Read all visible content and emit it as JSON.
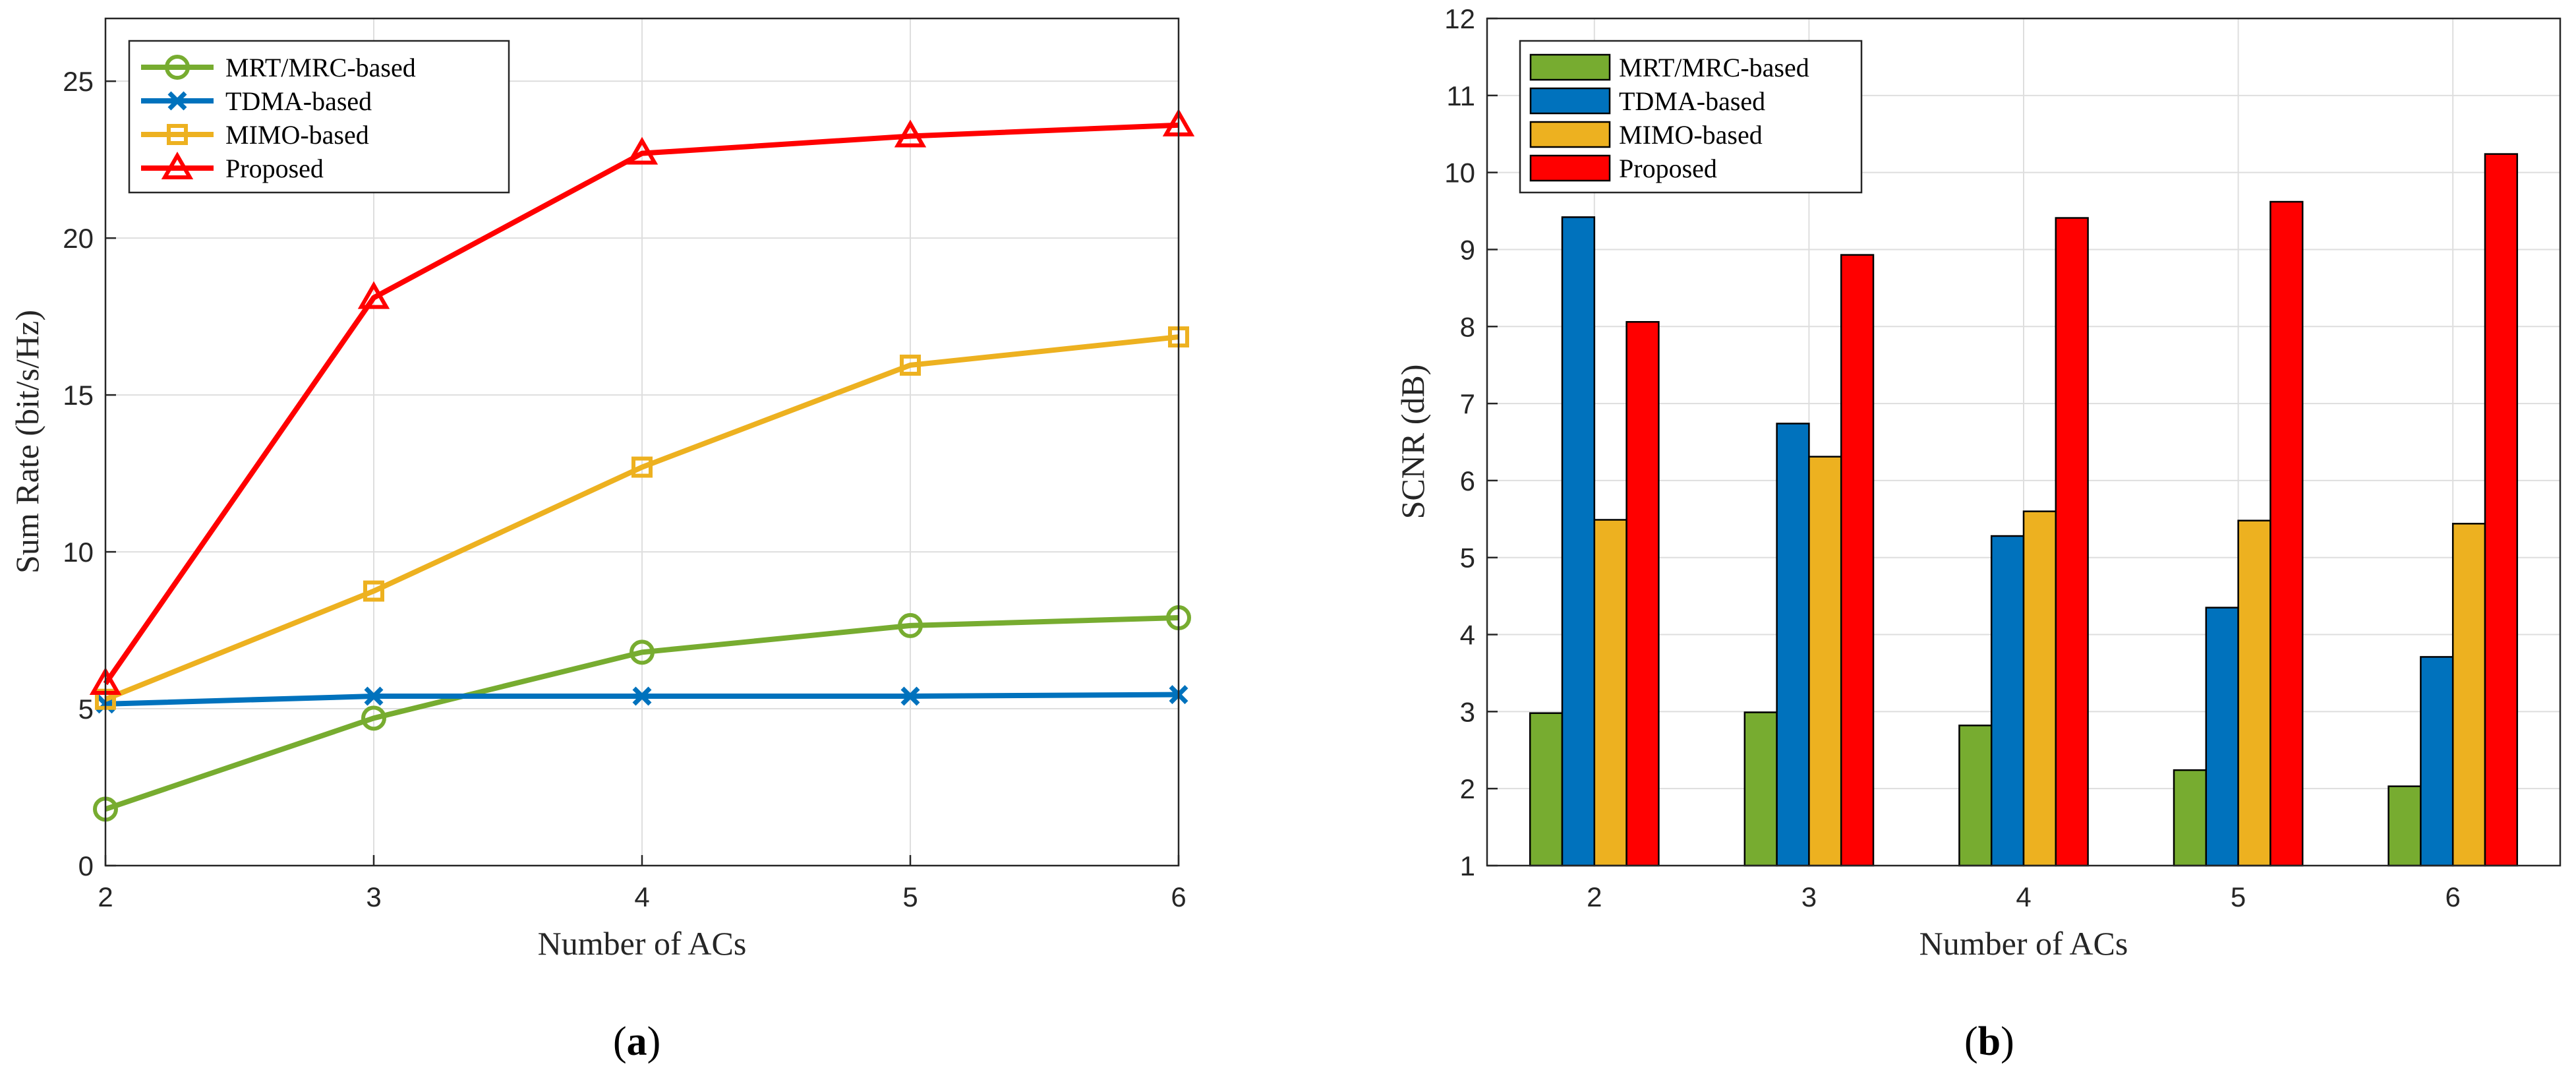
{
  "colors": {
    "mrt": "#77ac30",
    "tdma": "#0072bd",
    "mimo": "#edb120",
    "proposed": "#ff0000",
    "grid": "#dedede",
    "axis": "#262626"
  },
  "chart_data": [
    {
      "type": "line",
      "panel": "a",
      "caption": {
        "open": "(",
        "letter": "a",
        "close": ")"
      },
      "title": "",
      "xlabel": "Number of ACs",
      "ylabel": "Sum Rate (bit/s/Hz)",
      "x": [
        2,
        3,
        4,
        5,
        6
      ],
      "xlim": [
        2,
        6
      ],
      "ylim": [
        0,
        27
      ],
      "xticks": [
        2,
        3,
        4,
        5,
        6
      ],
      "yticks": [
        0,
        5,
        10,
        15,
        20,
        25
      ],
      "grid": true,
      "legend_position": "top-left",
      "series": [
        {
          "name": "MRT/MRC-based",
          "color_key": "mrt",
          "marker": "circle",
          "values": [
            1.8,
            4.7,
            6.8,
            7.65,
            7.9
          ]
        },
        {
          "name": "TDMA-based",
          "color_key": "tdma",
          "marker": "x",
          "values": [
            5.15,
            5.4,
            5.4,
            5.4,
            5.45
          ]
        },
        {
          "name": "MIMO-based",
          "color_key": "mimo",
          "marker": "square",
          "values": [
            5.3,
            8.75,
            12.7,
            15.95,
            16.85
          ]
        },
        {
          "name": "Proposed",
          "color_key": "proposed",
          "marker": "triangle",
          "values": [
            5.8,
            18.1,
            22.7,
            23.25,
            23.6
          ]
        }
      ]
    },
    {
      "type": "bar",
      "panel": "b",
      "caption": {
        "open": "(",
        "letter": "b",
        "close": ")"
      },
      "title": "",
      "xlabel": "Number of ACs",
      "ylabel": "SCNR (dB)",
      "categories": [
        "2",
        "3",
        "4",
        "5",
        "6"
      ],
      "ylim": [
        1,
        12
      ],
      "yticks": [
        1,
        2,
        3,
        4,
        5,
        6,
        7,
        8,
        9,
        10,
        11,
        12
      ],
      "grid": true,
      "legend_position": "top-left",
      "series": [
        {
          "name": "MRT/MRC-based",
          "color_key": "mrt",
          "values": [
            2.98,
            2.99,
            2.82,
            2.24,
            2.03
          ]
        },
        {
          "name": "TDMA-based",
          "color_key": "tdma",
          "values": [
            9.42,
            6.74,
            5.28,
            4.35,
            3.71
          ]
        },
        {
          "name": "MIMO-based",
          "color_key": "mimo",
          "values": [
            5.49,
            6.31,
            5.6,
            5.48,
            5.44
          ]
        },
        {
          "name": "Proposed",
          "color_key": "proposed",
          "values": [
            8.06,
            8.93,
            9.41,
            9.62,
            10.24
          ]
        }
      ]
    }
  ]
}
